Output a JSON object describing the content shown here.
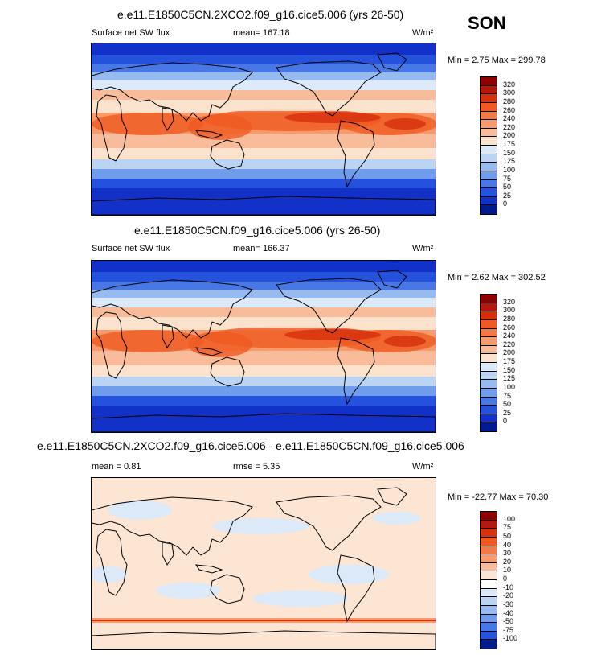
{
  "season": "SON",
  "panels": [
    {
      "title": "e.e11.E1850C5CN.2XCO2.f09_g16.cice5.006 (yrs 26-50)",
      "left_label": "Surface net SW flux",
      "center_label": "mean= 167.18",
      "units": "W/m²",
      "minmax": "Min =   2.75 Max = 299.78",
      "colorbar": {
        "labels": [
          "320",
          "300",
          "280",
          "260",
          "240",
          "220",
          "200",
          "175",
          "150",
          "125",
          "100",
          "75",
          "50",
          "25",
          "0"
        ],
        "colors": [
          "#8b0000",
          "#b2180b",
          "#d62f0c",
          "#ef5a22",
          "#f47a45",
          "#f79a6c",
          "#f8bc9a",
          "#fbe2cc",
          "#dce9f8",
          "#bcd4f4",
          "#98bbef",
          "#6f9ceb",
          "#4878e6",
          "#2552dc",
          "#1131c8",
          "#001a8f"
        ]
      },
      "map_type": "abs"
    },
    {
      "title": "e.e11.E1850C5CN.f09_g16.cice5.006 (yrs 26-50)",
      "left_label": "Surface net SW flux",
      "center_label": "mean= 166.37",
      "units": "W/m²",
      "minmax": "Min =   2.62 Max = 302.52",
      "colorbar": {
        "labels": [
          "320",
          "300",
          "280",
          "260",
          "240",
          "220",
          "200",
          "175",
          "150",
          "125",
          "100",
          "75",
          "50",
          "25",
          "0"
        ],
        "colors": [
          "#8b0000",
          "#b2180b",
          "#d62f0c",
          "#ef5a22",
          "#f47a45",
          "#f79a6c",
          "#f8bc9a",
          "#fbe2cc",
          "#dce9f8",
          "#bcd4f4",
          "#98bbef",
          "#6f9ceb",
          "#4878e6",
          "#2552dc",
          "#1131c8",
          "#001a8f"
        ]
      },
      "map_type": "abs"
    },
    {
      "title": "e.e11.E1850C5CN.2XCO2.f09_g16.cice5.006 - e.e11.E1850C5CN.f09_g16.cice5.006",
      "left_label": "mean =   0.81",
      "center_label": "rmse =   5.35",
      "units": "W/m²",
      "minmax": "Min = -22.77 Max =  70.30",
      "colorbar": {
        "labels": [
          "100",
          "75",
          "50",
          "40",
          "30",
          "20",
          "10",
          "0",
          "-10",
          "-20",
          "-30",
          "-40",
          "-50",
          "-75",
          "-100"
        ],
        "colors": [
          "#8b0000",
          "#b2180b",
          "#d62f0c",
          "#ef5a22",
          "#f47a45",
          "#f79a6c",
          "#f8bc9a",
          "#fde5d3",
          "#ffffff",
          "#dce9f8",
          "#bcd4f4",
          "#98bbef",
          "#6f9ceb",
          "#4878e6",
          "#2552dc",
          "#001a8f"
        ]
      },
      "map_type": "diff"
    }
  ]
}
